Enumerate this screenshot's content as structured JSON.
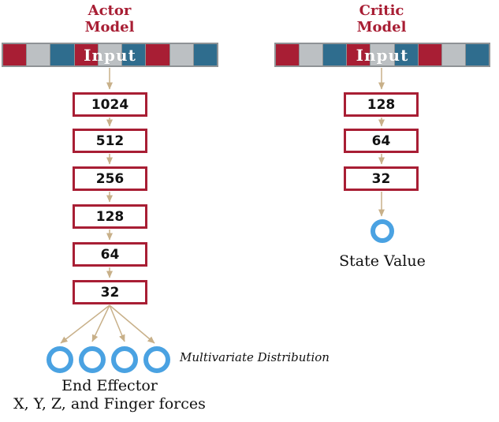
{
  "colors": {
    "crimson": "#a81e34",
    "teal": "#2f6d8e",
    "gray": "#bcc0c3",
    "bar_border": "#8f9396",
    "arrow": "#c8b089",
    "blue": "#4aa2e2",
    "text": "#111111"
  },
  "input_bar_pattern": [
    "crimson",
    "gray",
    "teal",
    "crimson",
    "gray",
    "teal",
    "crimson",
    "gray",
    "teal"
  ],
  "actor": {
    "title": "Actor\nModel",
    "input_label": "Input",
    "layers": [
      "1024",
      "512",
      "256",
      "128",
      "64",
      "32"
    ],
    "output_circle_count": 4,
    "annotation": "Multivariate Distribution",
    "output_caption_line1": "End Effector",
    "output_caption_line2": "X, Y, Z, and Finger forces"
  },
  "critic": {
    "title": "Critic\nModel",
    "input_label": "Input",
    "layers": [
      "128",
      "64",
      "32"
    ],
    "output_circle_count": 1,
    "output_label": "State Value"
  }
}
